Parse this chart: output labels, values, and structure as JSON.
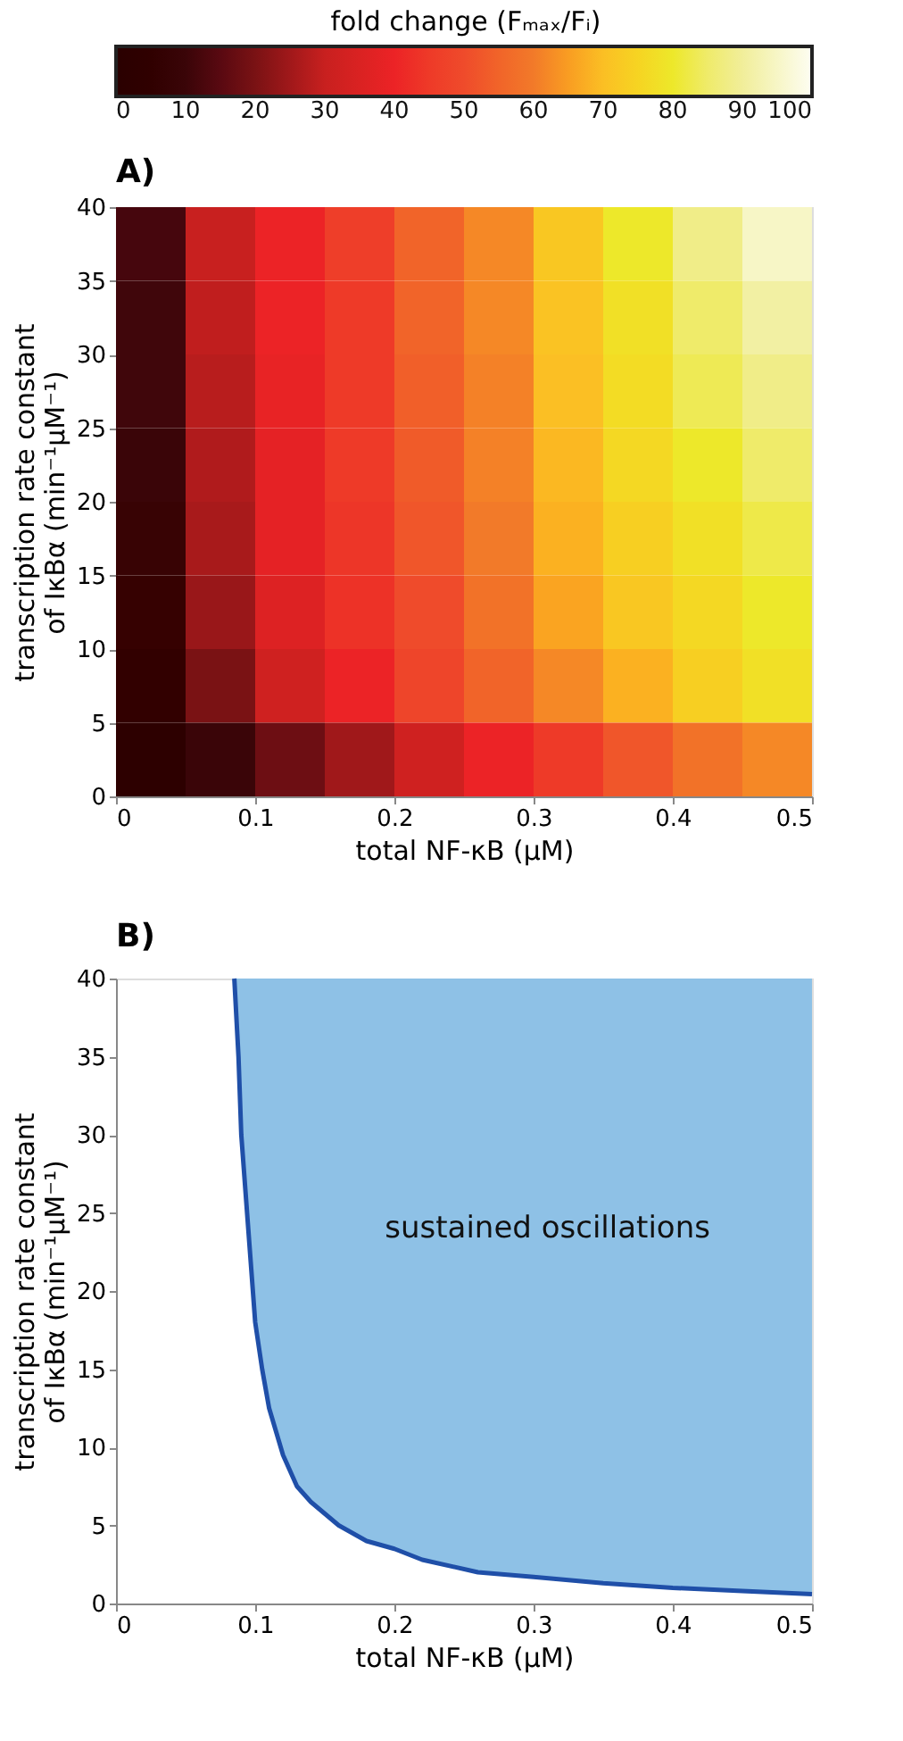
{
  "chart_data": [
    {
      "type": "heatmap",
      "title": "A)",
      "xlabel": "total NF-κB (µM)",
      "ylabel": "transcription rate constant\nof IκBα (min⁻¹µM⁻¹)",
      "clabel": "fold change (Fₘₐₓ/Fᵢ)",
      "x": [
        0.025,
        0.075,
        0.125,
        0.175,
        0.225,
        0.275,
        0.325,
        0.375,
        0.425,
        0.475
      ],
      "y": [
        37.5,
        32.5,
        27.5,
        22.5,
        17.5,
        12.5,
        7.5,
        2.5
      ],
      "cells": [
        [
          12,
          30,
          40,
          46,
          55,
          62,
          72,
          80,
          88,
          95
        ],
        [
          11,
          29,
          40,
          45,
          55,
          62,
          71,
          78,
          85,
          91
        ],
        [
          11,
          28,
          39,
          45,
          54,
          61,
          70,
          77,
          83,
          88
        ],
        [
          10,
          27,
          38,
          45,
          53,
          61,
          69,
          76,
          80,
          85
        ],
        [
          9,
          26,
          38,
          44,
          52,
          60,
          68,
          74,
          78,
          82
        ],
        [
          8,
          24,
          36,
          43,
          50,
          58,
          66,
          72,
          76,
          80
        ],
        [
          6,
          20,
          32,
          40,
          48,
          55,
          62,
          68,
          74,
          78
        ],
        [
          3,
          10,
          18,
          25,
          32,
          40,
          45,
          52,
          58,
          62
        ]
      ],
      "clim": [
        0,
        100
      ],
      "cticks": [
        0,
        10,
        20,
        30,
        40,
        50,
        60,
        70,
        80,
        90,
        100
      ],
      "xlim": [
        0,
        0.5
      ],
      "xticks": [
        0,
        0.1,
        0.2,
        0.3,
        0.4,
        0.5
      ],
      "ylim": [
        0,
        40
      ],
      "yticks": [
        0,
        5,
        10,
        15,
        20,
        25,
        30,
        35,
        40
      ],
      "grid": false
    },
    {
      "type": "line",
      "title": "B)",
      "xlabel": "total NF-κB (µM)",
      "ylabel": "transcription rate constant\nof IκBα (min⁻¹µM⁻¹)",
      "series": [
        {
          "type": "line",
          "color": "#1f4fa8",
          "x": [
            0.085,
            0.088,
            0.09,
            0.095,
            0.1,
            0.105,
            0.11,
            0.12,
            0.13,
            0.14,
            0.16,
            0.18,
            0.2,
            0.22,
            0.26,
            0.3,
            0.35,
            0.4,
            0.45,
            0.5
          ],
          "values": [
            40,
            35,
            30,
            24,
            18,
            15,
            12.5,
            9.5,
            7.5,
            6.5,
            5,
            4,
            3.5,
            2.8,
            2,
            1.7,
            1.3,
            1,
            0.8,
            0.6
          ]
        }
      ],
      "annotations": [
        "sustained oscillations"
      ],
      "xlim": [
        0,
        0.5
      ],
      "xticks": [
        0,
        0.1,
        0.2,
        0.3,
        0.4,
        0.5
      ],
      "ylim": [
        0,
        40
      ],
      "yticks": [
        0,
        5,
        10,
        15,
        20,
        25,
        30,
        35,
        40
      ],
      "grid": false
    }
  ]
}
